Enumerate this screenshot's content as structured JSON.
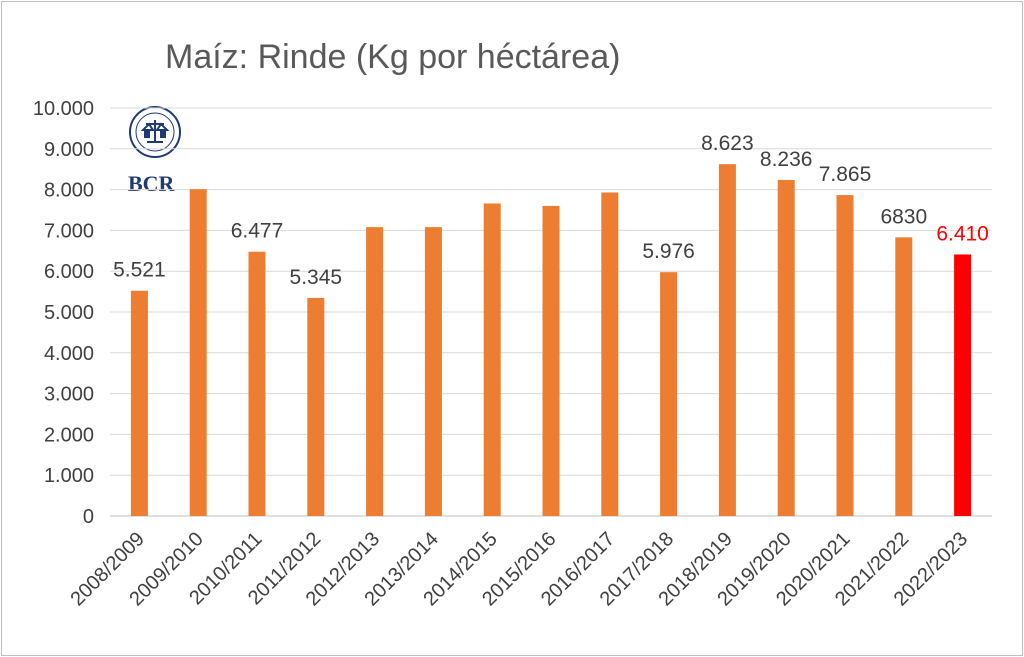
{
  "colors": {
    "bar": "#ed7d31",
    "highlight": "#ff0000",
    "grid": "#d9d9d9",
    "axis": "#bfbfbf",
    "logo": "#1f3b73"
  },
  "logo": {
    "text": "BCR",
    "icon": "bcr-seal-icon"
  },
  "chart_data": {
    "type": "bar",
    "title": "Maíz: Rinde (Kg por héctárea)",
    "xlabel": "",
    "ylabel": "",
    "ylim": [
      0,
      10000
    ],
    "yticks": [
      {
        "value": 0,
        "label": "0"
      },
      {
        "value": 1000,
        "label": "1.000"
      },
      {
        "value": 2000,
        "label": "2.000"
      },
      {
        "value": 3000,
        "label": "3.000"
      },
      {
        "value": 4000,
        "label": "4.000"
      },
      {
        "value": 5000,
        "label": "5.000"
      },
      {
        "value": 6000,
        "label": "6.000"
      },
      {
        "value": 7000,
        "label": "7.000"
      },
      {
        "value": 8000,
        "label": "8.000"
      },
      {
        "value": 9000,
        "label": "9.000"
      },
      {
        "value": 10000,
        "label": "10.000"
      }
    ],
    "grid": true,
    "categories": [
      "2008/2009",
      "2009/2010",
      "2010/2011",
      "2011/2012",
      "2012/2013",
      "2013/2014",
      "2014/2015",
      "2015/2016",
      "2016/2017",
      "2017/2018",
      "2018/2019",
      "2019/2020",
      "2020/2021",
      "2021/2022",
      "2022/2023"
    ],
    "values": [
      5521,
      8010,
      6477,
      5345,
      7080,
      7080,
      7660,
      7600,
      7930,
      5976,
      8623,
      8236,
      7865,
      6830,
      6410
    ],
    "data_labels": [
      "5.521",
      "",
      "6.477",
      "5.345",
      "",
      "",
      "",
      "",
      "",
      "5.976",
      "8.623",
      "8.236",
      "7.865",
      "6830",
      "6.410"
    ],
    "highlight_index": 14
  }
}
